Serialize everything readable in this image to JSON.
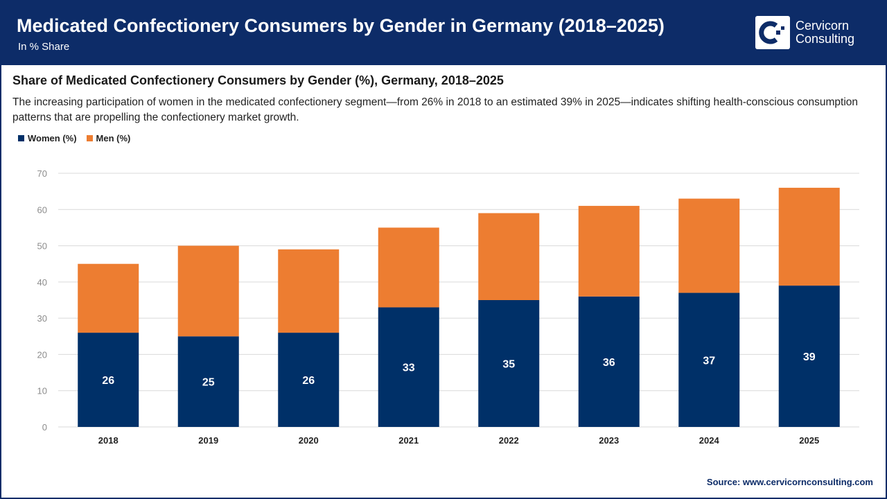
{
  "header": {
    "title": "Medicated Confectionery Consumers by Gender in Germany (2018–2025)",
    "subtitle": "In % Share"
  },
  "logo": {
    "line1": "Cervicorn",
    "line2": "Consulting"
  },
  "description": "The increasing participation of women in the medicated confectionery segment—from 26% in 2018 to an estimated 39% in 2025—indicates shifting health-conscious consumption patterns that are propelling the confectionery market growth.",
  "source": "Source: www.cervicornconsulting.com",
  "colors": {
    "brand": "#0d2c68",
    "women": "#003068",
    "men": "#ed7d31"
  },
  "chart_data": {
    "type": "bar",
    "stacked": true,
    "title": "Share of Medicated Confectionery Consumers by Gender (%), Germany, 2018–2025",
    "categories": [
      "2018",
      "2019",
      "2020",
      "2021",
      "2022",
      "2023",
      "2024",
      "2025"
    ],
    "series": [
      {
        "name": "Women (%)",
        "values": [
          26,
          25,
          26,
          33,
          35,
          36,
          37,
          39
        ],
        "data_labels": true
      },
      {
        "name": "Men (%)",
        "values": [
          19,
          25,
          23,
          22,
          24,
          25,
          26,
          27
        ]
      }
    ],
    "ylim": [
      0,
      70
    ],
    "yticks": [
      0,
      10,
      20,
      30,
      40,
      50,
      60,
      70
    ],
    "grid": true,
    "legend": "top-left"
  }
}
